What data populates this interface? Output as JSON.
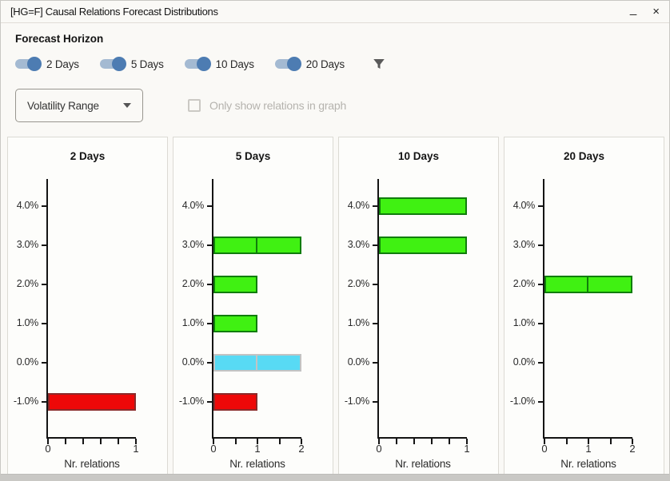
{
  "window": {
    "title": "[HG=F] Causal Relations Forecast Distributions",
    "minimize_glyph": "_",
    "close_glyph": "×"
  },
  "controls": {
    "forecast_horizon_label": "Forecast Horizon",
    "toggles": [
      {
        "label": "2 Days",
        "on": true
      },
      {
        "label": "5 Days",
        "on": true
      },
      {
        "label": "10 Days",
        "on": true
      },
      {
        "label": "20 Days",
        "on": true
      }
    ],
    "filter_icon": "funnel-icon",
    "dropdown": {
      "value": "Volatility Range",
      "icon": "chevron-down-icon"
    },
    "checkbox": {
      "label": "Only show relations in graph",
      "checked": false
    }
  },
  "colors": {
    "accent_toggle_knob": "#4d7cb2",
    "accent_toggle_track": "#a4bad2",
    "bar_styles": {
      "green": {
        "fill": "#40f112",
        "border": "#107d0c"
      },
      "red": {
        "fill": "#ee0808",
        "border": "#8b2a2a"
      },
      "cyan": {
        "fill": "#58daf4",
        "border": "#c3c3c3"
      }
    }
  },
  "chart_data": [
    {
      "type": "bar",
      "orientation": "horizontal",
      "title": "2 Days",
      "xlabel": "Nr. relations",
      "y_tick_labels": [
        "4.0%",
        "3.0%",
        "2.0%",
        "1.0%",
        "0.0%",
        "-1.0%"
      ],
      "y_tick_values": [
        4.0,
        3.0,
        2.0,
        1.0,
        0.0,
        -1.0
      ],
      "xlim": [
        0,
        1
      ],
      "x_major_ticks": [
        0,
        1
      ],
      "x_minor_step": 0.2,
      "bars": [
        {
          "y_pct": -1.0,
          "relations": 1,
          "color": "red"
        }
      ]
    },
    {
      "type": "bar",
      "orientation": "horizontal",
      "title": "5 Days",
      "xlabel": "Nr. relations",
      "y_tick_labels": [
        "4.0%",
        "3.0%",
        "2.0%",
        "1.0%",
        "0.0%",
        "-1.0%"
      ],
      "y_tick_values": [
        4.0,
        3.0,
        2.0,
        1.0,
        0.0,
        -1.0
      ],
      "xlim": [
        0,
        2
      ],
      "x_major_ticks": [
        0,
        1,
        2
      ],
      "x_minor_step": 0.5,
      "bars": [
        {
          "y_pct": 3.0,
          "relations": 2,
          "color": "green"
        },
        {
          "y_pct": 2.0,
          "relations": 1,
          "color": "green"
        },
        {
          "y_pct": 1.0,
          "relations": 1,
          "color": "green"
        },
        {
          "y_pct": 0.0,
          "relations": 2,
          "color": "cyan"
        },
        {
          "y_pct": -1.0,
          "relations": 1,
          "color": "red"
        }
      ]
    },
    {
      "type": "bar",
      "orientation": "horizontal",
      "title": "10 Days",
      "xlabel": "Nr. relations",
      "y_tick_labels": [
        "4.0%",
        "3.0%",
        "2.0%",
        "1.0%",
        "0.0%",
        "-1.0%"
      ],
      "y_tick_values": [
        4.0,
        3.0,
        2.0,
        1.0,
        0.0,
        -1.0
      ],
      "xlim": [
        0,
        1
      ],
      "x_major_ticks": [
        0,
        1
      ],
      "x_minor_step": 0.2,
      "bars": [
        {
          "y_pct": 4.0,
          "relations": 1,
          "color": "green"
        },
        {
          "y_pct": 3.0,
          "relations": 1,
          "color": "green"
        }
      ]
    },
    {
      "type": "bar",
      "orientation": "horizontal",
      "title": "20 Days",
      "xlabel": "Nr. relations",
      "y_tick_labels": [
        "4.0%",
        "3.0%",
        "2.0%",
        "1.0%",
        "0.0%",
        "-1.0%"
      ],
      "y_tick_values": [
        4.0,
        3.0,
        2.0,
        1.0,
        0.0,
        -1.0
      ],
      "xlim": [
        0,
        2
      ],
      "x_major_ticks": [
        0,
        1,
        2
      ],
      "x_minor_step": 0.5,
      "bars": [
        {
          "y_pct": 2.0,
          "relations": 2,
          "color": "green"
        }
      ]
    }
  ]
}
